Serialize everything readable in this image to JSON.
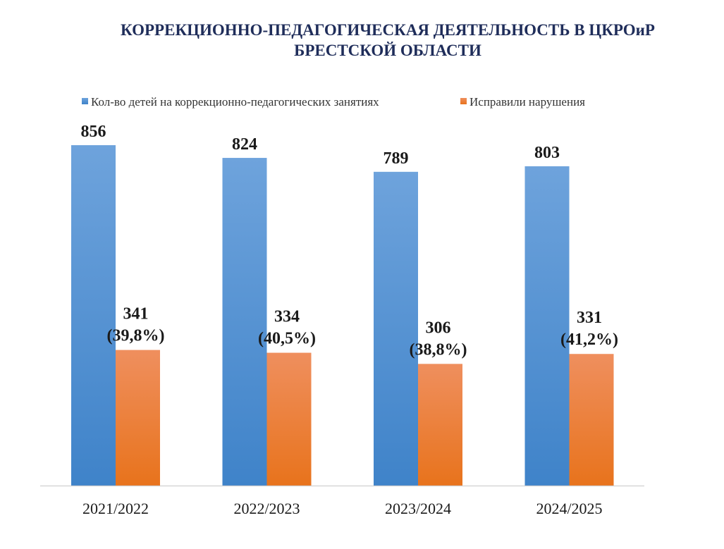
{
  "chart_data": {
    "type": "bar",
    "title_lines": [
      "КОРРЕКЦИОННО-ПЕДАГОГИЧЕСКАЯ ДЕЯТЕЛЬНОСТЬ В ЦКРОиР",
      "БРЕСТСКОЙ ОБЛАСТИ"
    ],
    "categories": [
      "2021/2022",
      "2022/2023",
      "2023/2024",
      "2024/2025"
    ],
    "series": [
      {
        "name": "Кол-во детей на коррекционно-педагогических занятиях",
        "values": [
          856,
          824,
          789,
          803
        ],
        "labels": [
          [
            "856"
          ],
          [
            "824"
          ],
          [
            "789"
          ],
          [
            "803"
          ]
        ],
        "color": "#4a8fd0"
      },
      {
        "name": "Исправили нарушения",
        "values": [
          341,
          334,
          306,
          331
        ],
        "labels": [
          [
            "341",
            "(39,8%)"
          ],
          [
            "334",
            "(40,5%)"
          ],
          [
            "306",
            "(38,8%)"
          ],
          [
            "331",
            "(41,2%)"
          ]
        ],
        "color": "#ef7c2b"
      }
    ],
    "ylim": [
      0,
      856
    ],
    "grid": false,
    "legend_position": "top"
  }
}
